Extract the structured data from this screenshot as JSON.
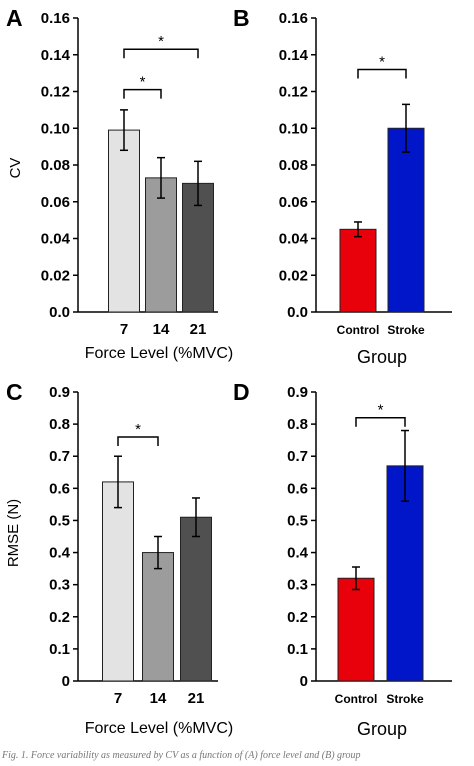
{
  "caption": "Fig. 1. Force variability as measured by CV as a function of (A) force level and (B) group",
  "chart_data": [
    {
      "panel": "A",
      "type": "bar",
      "categories": [
        "7",
        "14",
        "21"
      ],
      "values": [
        0.099,
        0.073,
        0.07
      ],
      "errors": [
        0.011,
        0.011,
        0.012
      ],
      "colors": [
        "#e3e3e3",
        "#9c9c9c",
        "#505050"
      ],
      "ylim": [
        0,
        0.16
      ],
      "yticks": [
        "0.0",
        "0.02",
        "0.04",
        "0.06",
        "0.08",
        "0.10",
        "0.12",
        "0.14",
        "0.16"
      ],
      "ylabel": "CV",
      "xlabel": "Force Level (%MVC)",
      "grid": false,
      "significance": [
        {
          "from": 0,
          "to": 1,
          "y": 0.121,
          "label": "*"
        },
        {
          "from": 0,
          "to": 2,
          "y": 0.143,
          "label": "*"
        }
      ]
    },
    {
      "panel": "B",
      "type": "bar",
      "categories": [
        "Control",
        "Stroke"
      ],
      "values": [
        0.045,
        0.1
      ],
      "errors": [
        0.004,
        0.013
      ],
      "colors": [
        "#e8000b",
        "#0016c8"
      ],
      "ylim": [
        0,
        0.16
      ],
      "yticks": [
        "0.0",
        "0.02",
        "0.04",
        "0.06",
        "0.08",
        "0.10",
        "0.12",
        "0.14",
        "0.16"
      ],
      "ylabel": "",
      "xlabel": "Group",
      "grid": false,
      "significance": [
        {
          "from": 0,
          "to": 1,
          "y": 0.132,
          "label": "*"
        }
      ]
    },
    {
      "panel": "C",
      "type": "bar",
      "categories": [
        "7",
        "14",
        "21"
      ],
      "values": [
        0.62,
        0.4,
        0.51
      ],
      "errors": [
        0.08,
        0.05,
        0.06
      ],
      "colors": [
        "#e3e3e3",
        "#9c9c9c",
        "#505050"
      ],
      "ylim": [
        0,
        0.9
      ],
      "yticks": [
        "0",
        "0.1",
        "0.2",
        "0.3",
        "0.4",
        "0.5",
        "0.6",
        "0.7",
        "0.8",
        "0.9"
      ],
      "ylabel": "RMSE (N)",
      "xlabel": "Force Level (%MVC)",
      "grid": false,
      "significance": [
        {
          "from": 0,
          "to": 1,
          "y": 0.76,
          "label": "*"
        }
      ]
    },
    {
      "panel": "D",
      "type": "bar",
      "categories": [
        "Control",
        "Stroke"
      ],
      "values": [
        0.32,
        0.67
      ],
      "errors": [
        0.035,
        0.11
      ],
      "colors": [
        "#e8000b",
        "#0016c8"
      ],
      "ylim": [
        0,
        0.9
      ],
      "yticks": [
        "0",
        "0.1",
        "0.2",
        "0.3",
        "0.4",
        "0.5",
        "0.6",
        "0.7",
        "0.8",
        "0.9"
      ],
      "ylabel": "",
      "xlabel": "Group",
      "grid": false,
      "significance": [
        {
          "from": 0,
          "to": 1,
          "y": 0.82,
          "label": "*"
        }
      ]
    }
  ]
}
